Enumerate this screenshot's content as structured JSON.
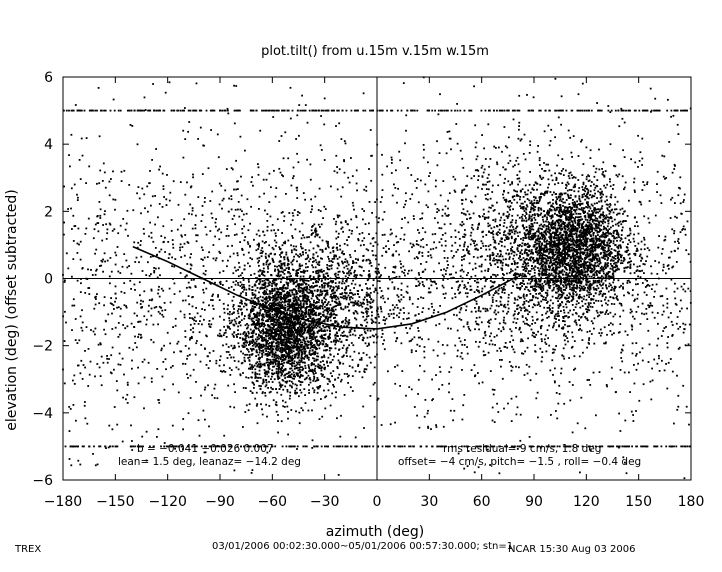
{
  "chart_data": {
    "type": "scatter",
    "title": "plot.tilt() from u.15m v.15m w.15m",
    "xlabel": "azimuth (deg)",
    "ylabel": "elevation (deg)  (offset subtracted)",
    "xlim": [
      -180,
      180
    ],
    "ylim": [
      -6,
      6
    ],
    "x_ticks": [
      -180,
      -150,
      -120,
      -90,
      -60,
      -30,
      0,
      30,
      60,
      90,
      120,
      150,
      180
    ],
    "y_ticks": [
      -6,
      -4,
      -2,
      0,
      2,
      4,
      6
    ],
    "x_tick_labels": [
      "−180",
      "−150",
      "−120",
      "−90",
      "−60",
      "−30",
      "0",
      "30",
      "60",
      "90",
      "120",
      "150",
      "180"
    ],
    "y_tick_labels": [
      "−6",
      "−4",
      "−2",
      "0",
      "2",
      "4",
      "6"
    ],
    "grid": false,
    "reference_lines": {
      "x": 0,
      "y": 0
    },
    "clusters": [
      {
        "x_center": -52,
        "y_center": -1.6,
        "x_spread": 14,
        "y_spread": 0.9,
        "n": 2300
      },
      {
        "x_center": 112,
        "y_center": 0.9,
        "x_spread": 15,
        "y_spread": 0.9,
        "n": 2300
      },
      {
        "x_center": -35,
        "y_center": -0.6,
        "x_spread": 26,
        "y_spread": 1.0,
        "n": 1200
      },
      {
        "x_center": 90,
        "y_center": 0.6,
        "x_spread": 30,
        "y_spread": 1.4,
        "n": 1300
      }
    ],
    "background_points": 2600,
    "saturation_rows": [
      {
        "y": 5.0,
        "x_range": [
          -180,
          180
        ]
      },
      {
        "y": -5.0,
        "x_range": [
          -180,
          180
        ]
      }
    ],
    "fit_curve": {
      "x": [
        -140,
        -120,
        -100,
        -80,
        -60,
        -40,
        -20,
        0,
        20,
        40,
        60,
        80
      ],
      "y": [
        0.95,
        0.5,
        0.0,
        -0.5,
        -0.93,
        -1.25,
        -1.45,
        -1.5,
        -1.35,
        -1.0,
        -0.5,
        0.05
      ]
    },
    "annotations_left": [
      "b = −0.041 −0.026 0.007",
      "lean= 1.5 deg, leanaz= −14.2 deg"
    ],
    "annotations_right": [
      "rms residual= 9 cm/s, 1.8 deg",
      "offset= −4 cm/s, pitch= −1.5 , roll= −0.4 deg"
    ]
  },
  "footer": {
    "project": "TREX",
    "time_range": "03/01/2006 00:02:30.000~05/01/2006 00:57:30.000; stn=1",
    "stamp": "NCAR 15:30 Aug 03 2006"
  }
}
